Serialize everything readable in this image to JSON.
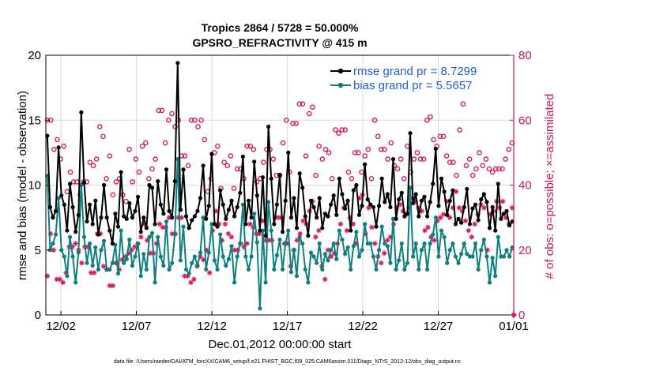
{
  "chart_data": {
    "type": "line",
    "title_line1": "Tropics 2864 / 5728 = 50.000%",
    "title_line2": "GPSRO_REFRACTIVITY @ 415 m",
    "xlabel": "Dec.01,2012 00:00:00 start",
    "ylabel": "rmse and bias (model - observation)",
    "ylabel_right": "# of obs: o=possible; ×=assimilated",
    "ylim": [
      0,
      20
    ],
    "ylim_right": [
      0,
      80
    ],
    "yticks": [
      "0",
      "5",
      "10",
      "15",
      "20"
    ],
    "yticks_right": [
      "0",
      "20",
      "40",
      "60",
      "80"
    ],
    "xlim": [
      0,
      31
    ],
    "xticks": [
      {
        "value": 1,
        "label": "12/02"
      },
      {
        "value": 6,
        "label": "12/07"
      },
      {
        "value": 11,
        "label": "12/12"
      },
      {
        "value": 16,
        "label": "12/17"
      },
      {
        "value": 21,
        "label": "12/22"
      },
      {
        "value": 26,
        "label": "12/27"
      },
      {
        "value": 31,
        "label": "01/01"
      }
    ],
    "footnote": "data file: /Users/raeder/DAI/ATM_forcXX/CAM6_setup/f.e21.FHIST_BGC.f09_025.CAM6assim.011/Diags_NTrS_2012-12/obs_diag_output.nc",
    "colors": {
      "rmse": "#000000",
      "bias": "#0e7f80",
      "obs": "#d81b60",
      "legend_text": "#1f5fd6",
      "grid": "#dcdcdc",
      "right_axis": "#c8195a"
    },
    "series": [
      {
        "name": "rmse",
        "legend": "rmse grand pr = 8.7299",
        "values": [
          13.8,
          8.3,
          7.5,
          8.0,
          12.9,
          9.2,
          8.5,
          6.5,
          10.1,
          8.3,
          6.4,
          7.7,
          15.6,
          10.2,
          7.2,
          8.5,
          7.0,
          8.8,
          6.2,
          7.5,
          10.0,
          7.5,
          6.5,
          5.5,
          7.8,
          6.8,
          11.0,
          7.6,
          7.4,
          8.6,
          7.5,
          8.0,
          9.1,
          6.4,
          7.5,
          6.7,
          10.0,
          9.8,
          7.0,
          10.3,
          8.5,
          7.8,
          11.2,
          8.0,
          7.5,
          10.3,
          19.4,
          8.1,
          11.2,
          7.6,
          6.7,
          7.3,
          7.6,
          8.0,
          9.0,
          11.5,
          7.4,
          8.4,
          12.4,
          7.0,
          6.8,
          9.6,
          8.5,
          7.4,
          8.1,
          8.8,
          7.6,
          8.3,
          9.4,
          12.2,
          7.0,
          8.8,
          7.5,
          11.8,
          9.2,
          6.5,
          10.6,
          6.1,
          14.5,
          10.5,
          7.0,
          8.5,
          10.8,
          6.4,
          8.8,
          12.5,
          7.5,
          9.0,
          6.7,
          10.9,
          9.8,
          7.6,
          6.1,
          8.8,
          8.3,
          7.5,
          9.0,
          6.7,
          7.8,
          7.6,
          8.5,
          9.2,
          7.7,
          10.5,
          9.3,
          8.2,
          8.8,
          6.5,
          9.6,
          10.0,
          7.7,
          8.4,
          11.6,
          8.9,
          8.5,
          8.3,
          6.8,
          8.4,
          10.5,
          8.7,
          9.3,
          8.3,
          12.0,
          7.4,
          8.9,
          9.4,
          7.6,
          7.8,
          14.0,
          8.6,
          9.3,
          7.6,
          8.8,
          9.1,
          7.6,
          8.7,
          10.1,
          12.8,
          8.4,
          10.5,
          9.5,
          7.7,
          8.8,
          9.6,
          7.0,
          7.4,
          7.1,
          8.3,
          9.7,
          7.0,
          8.2,
          8.5,
          7.3,
          8.9,
          9.3,
          8.7,
          6.7,
          8.3,
          6.5,
          10.1,
          7.4,
          7.8,
          8.0,
          6.9,
          7.2
        ]
      },
      {
        "name": "bias",
        "legend": "bias grand pr = 5.5657",
        "values": [
          10.7,
          5.0,
          5.5,
          6.2,
          9.0,
          5.0,
          4.5,
          3.0,
          6.0,
          4.5,
          2.5,
          4.8,
          10.0,
          6.0,
          4.0,
          5.5,
          3.8,
          5.2,
          3.5,
          5.0,
          5.7,
          3.5,
          3.5,
          4.0,
          5.4,
          3.2,
          6.5,
          4.0,
          4.3,
          5.8,
          3.8,
          4.5,
          5.5,
          3.0,
          4.7,
          3.5,
          6.0,
          6.3,
          2.5,
          6.0,
          4.5,
          3.8,
          7.2,
          3.5,
          4.0,
          6.2,
          12.0,
          4.2,
          6.8,
          3.5,
          3.2,
          4.0,
          4.5,
          3.8,
          4.8,
          7.5,
          3.5,
          4.8,
          7.0,
          4.2,
          3.5,
          6.2,
          4.5,
          3.8,
          4.3,
          5.3,
          2.5,
          4.5,
          5.5,
          8.5,
          4.5,
          3.5,
          4.5,
          7.8,
          5.6,
          0.5,
          6.5,
          2.5,
          8.7,
          6.5,
          3.5,
          4.6,
          5.8,
          3.5,
          5.5,
          6.5,
          3.3,
          5.0,
          3.0,
          6.0,
          5.5,
          3.5,
          2.5,
          4.8,
          4.5,
          4.0,
          5.5,
          3.5,
          4.7,
          4.2,
          5.0,
          5.5,
          4.3,
          6.5,
          5.8,
          4.7,
          5.2,
          3.5,
          5.3,
          6.4,
          4.5,
          5.0,
          7.0,
          5.5,
          5.5,
          4.5,
          3.5,
          5.0,
          6.8,
          5.5,
          5.3,
          4.0,
          7.4,
          3.5,
          4.2,
          5.5,
          3.5,
          4.0,
          9.8,
          4.5,
          5.5,
          3.5,
          5.0,
          5.5,
          3.5,
          5.5,
          6.2,
          7.5,
          4.5,
          6.5,
          6.0,
          4.0,
          5.0,
          5.5,
          4.5,
          4.0,
          4.7,
          5.5,
          4.7,
          4.5,
          4.5,
          5.5,
          3.5,
          5.0,
          5.8,
          4.5,
          2.5,
          4.4,
          3.0,
          6.0,
          4.5,
          4.5,
          5.0,
          4.5,
          5.2
        ]
      },
      {
        "name": "obs_possible",
        "marker": "o",
        "axis": "right",
        "values": [
          60,
          60,
          51,
          54,
          48,
          52,
          38,
          44,
          41,
          41,
          37,
          41,
          41,
          47,
          46,
          48,
          58,
          55,
          42,
          49,
          37,
          41,
          42,
          37,
          35,
          51,
          41,
          48,
          44,
          52,
          53,
          42,
          45,
          48,
          63,
          63,
          53,
          60,
          62,
          58,
          60,
          49,
          49,
          46,
          60,
          60,
          58,
          60,
          54,
          38,
          42,
          50,
          52,
          39,
          47,
          46,
          49,
          39,
          45,
          45,
          42,
          52,
          52,
          51,
          41,
          42,
          47,
          51,
          51,
          48,
          43,
          43,
          53,
          60,
          44,
          59,
          59,
          65,
          65,
          49,
          62,
          64,
          43,
          52,
          48,
          51,
          50,
          42,
          57,
          56,
          57,
          57,
          44,
          42,
          50,
          50,
          44,
          49,
          51,
          42,
          60,
          55,
          51,
          51,
          48,
          53,
          46,
          45,
          48,
          42,
          52,
          44,
          48,
          50,
          48,
          48,
          60,
          61,
          54,
          52,
          55,
          55,
          49,
          47,
          47,
          43,
          57,
          65,
          46,
          48,
          43,
          45,
          50,
          46,
          48,
          45,
          44,
          45,
          45,
          45,
          48,
          51,
          53
        ]
      },
      {
        "name": "obs_assimilated",
        "marker": "x",
        "axis": "right",
        "values": [
          12,
          25,
          20,
          11,
          11,
          10,
          13,
          21,
          21,
          22,
          20,
          16,
          21,
          21,
          13,
          13,
          25,
          25,
          15,
          14,
          9,
          9,
          16,
          14,
          17,
          18,
          19,
          20,
          21,
          22,
          24,
          28,
          23,
          19,
          19,
          22,
          28,
          27,
          27,
          30,
          25,
          25,
          30,
          30,
          12,
          12,
          10,
          11,
          15,
          18,
          17,
          20,
          13,
          26,
          32,
          28,
          23,
          28,
          25,
          24,
          20,
          20,
          22,
          21,
          22,
          28,
          27,
          25,
          25,
          29,
          23,
          23,
          23,
          30,
          30,
          30,
          22,
          22,
          15,
          20,
          23,
          25,
          29,
          28,
          32,
          35,
          24,
          26,
          15,
          11,
          20,
          18,
          19,
          22,
          28,
          33,
          26,
          30,
          28,
          22,
          36,
          37,
          25,
          33,
          27,
          22,
          18,
          16,
          19,
          23,
          24,
          28,
          33,
          34,
          32,
          31,
          33,
          36,
          35,
          33,
          32,
          26,
          27,
          24,
          23,
          29,
          30,
          31,
          35,
          30,
          33,
          38,
          33,
          32,
          29,
          26,
          24,
          28,
          31,
          34,
          33,
          20,
          31,
          32,
          35,
          33,
          35,
          30,
          28,
          33
        ]
      }
    ]
  }
}
